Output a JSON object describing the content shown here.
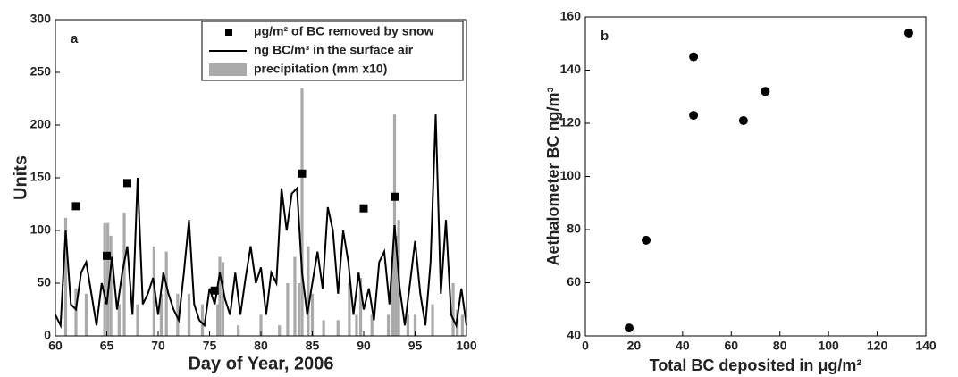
{
  "chart_data": [
    {
      "type": "line",
      "panel_label": "a",
      "xlabel": "Day of Year, 2006",
      "ylabel": "Units",
      "xlim": [
        60,
        100
      ],
      "xticks": [
        60,
        65,
        70,
        75,
        80,
        85,
        90,
        95,
        100
      ],
      "ylim": [
        0,
        300
      ],
      "yticks": [
        0,
        50,
        100,
        150,
        200,
        250,
        300
      ],
      "grid": false,
      "legend": "upper right",
      "series": [
        {
          "name": "μg/m² of BC removed by snow",
          "type": "scatter",
          "color": "#000000",
          "x": [
            62,
            65,
            67,
            75.5,
            84,
            90,
            93
          ],
          "values": [
            123,
            76,
            145,
            43,
            154,
            121,
            132
          ]
        },
        {
          "name": "ng BC/m³ in the surface air",
          "type": "line",
          "color": "#000000",
          "x": [
            60,
            60.5,
            61,
            61.5,
            62,
            62.5,
            63,
            63.5,
            64,
            64.5,
            65,
            65.5,
            66,
            66.5,
            67,
            67.5,
            68,
            68.5,
            69,
            69.5,
            70,
            70.5,
            71,
            71.5,
            72,
            72.5,
            73,
            73.5,
            74,
            74.5,
            75,
            75.5,
            76,
            76.5,
            77,
            77.5,
            78,
            78.5,
            79,
            79.5,
            80,
            80.5,
            81,
            81.5,
            82,
            82.5,
            83,
            83.5,
            84,
            84.5,
            85,
            85.5,
            86,
            86.5,
            87,
            87.5,
            88,
            88.5,
            89,
            89.5,
            90,
            90.5,
            91,
            91.5,
            92,
            92.5,
            93,
            93.5,
            94,
            94.5,
            95,
            95.5,
            96,
            96.5,
            97,
            97.5,
            98,
            98.5,
            99,
            99.5,
            100
          ],
          "values": [
            20,
            10,
            100,
            30,
            25,
            60,
            70,
            40,
            10,
            50,
            30,
            75,
            25,
            60,
            85,
            20,
            150,
            30,
            40,
            55,
            20,
            60,
            40,
            25,
            15,
            60,
            110,
            30,
            15,
            10,
            45,
            30,
            60,
            35,
            20,
            60,
            20,
            55,
            85,
            50,
            65,
            20,
            60,
            50,
            140,
            100,
            135,
            140,
            60,
            20,
            50,
            80,
            45,
            122,
            100,
            40,
            100,
            70,
            20,
            60,
            25,
            45,
            15,
            70,
            80,
            30,
            105,
            45,
            10,
            50,
            90,
            40,
            10,
            70,
            210,
            40,
            110,
            20,
            10,
            45,
            10
          ]
        },
        {
          "name": "precipitation (mm x10)",
          "type": "bar",
          "color": "#aaaaaa",
          "x": [
            61,
            62,
            63,
            64.8,
            65.1,
            65.4,
            66.2,
            66.7,
            68,
            69.6,
            70.3,
            70.8,
            71.9,
            73,
            74.3,
            75.8,
            76,
            76.3,
            77.8,
            80,
            81.8,
            82.6,
            83.3,
            83.7,
            84,
            84.6,
            85,
            86.1,
            87.5,
            88.6,
            89.3,
            89.7,
            90.8,
            92.4,
            92.8,
            93,
            93.2,
            93.4,
            94.3,
            95,
            96.7,
            98.7,
            99.1,
            99.6
          ],
          "values": [
            112,
            45,
            40,
            107,
            107,
            95,
            30,
            117,
            30,
            85,
            40,
            80,
            40,
            40,
            30,
            30,
            75,
            70,
            10,
            20,
            10,
            50,
            75,
            50,
            235,
            85,
            40,
            15,
            15,
            50,
            20,
            55,
            20,
            20,
            75,
            210,
            95,
            110,
            20,
            20,
            30,
            50,
            25,
            20
          ]
        }
      ]
    },
    {
      "type": "scatter",
      "panel_label": "b",
      "xlabel": "Total BC deposited in μg/m²",
      "ylabel": "Aethalometer BC ng/m³",
      "xlim": [
        0,
        140
      ],
      "xticks": [
        0,
        20,
        40,
        60,
        80,
        100,
        120,
        140
      ],
      "ylim": [
        40,
        160
      ],
      "yticks": [
        40,
        60,
        80,
        100,
        120,
        140,
        160
      ],
      "grid": false,
      "series": [
        {
          "type": "scatter",
          "color": "#000000",
          "x": [
            18,
            25,
            44.5,
            44.5,
            65,
            74,
            133
          ],
          "values": [
            43,
            76,
            145,
            123,
            121,
            132,
            154
          ]
        }
      ]
    }
  ]
}
